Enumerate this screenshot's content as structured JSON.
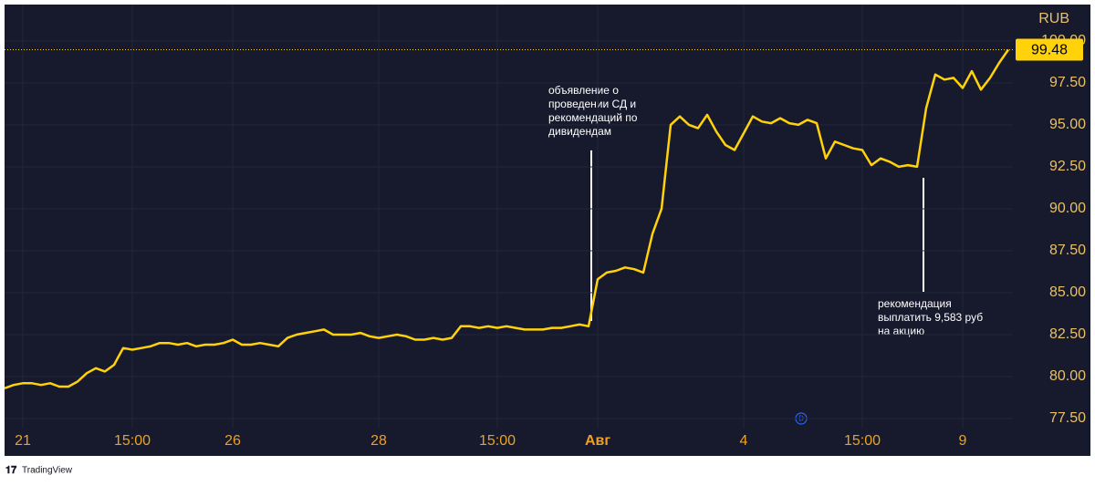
{
  "chart_data": {
    "type": "line",
    "currency": "RUB",
    "color": "#ffd20a",
    "grid": true,
    "categories": [
      null,
      null,
      "21",
      null,
      null,
      null,
      null,
      null,
      null,
      null,
      null,
      null,
      null,
      null,
      "15:00",
      null,
      null,
      null,
      null,
      null,
      null,
      null,
      null,
      null,
      null,
      "26",
      null,
      null,
      null,
      null,
      null,
      null,
      null,
      null,
      null,
      null,
      null,
      null,
      null,
      null,
      null,
      "28",
      null,
      null,
      null,
      null,
      null,
      null,
      null,
      null,
      null,
      null,
      null,
      null,
      "15:00",
      null,
      null,
      null,
      null,
      null,
      null,
      null,
      null,
      null,
      null,
      "Авг",
      null,
      null,
      null,
      null,
      null,
      null,
      null,
      null,
      null,
      null,
      null,
      null,
      null,
      null,
      null,
      "4",
      null,
      null,
      null,
      null,
      null,
      null,
      null,
      null,
      null,
      null,
      null,
      null,
      "15:00",
      null,
      null,
      null,
      null,
      null,
      null,
      null,
      null,
      null,
      null,
      "9",
      null,
      null,
      null,
      null,
      null
    ],
    "values": [
      79.3,
      79.5,
      79.6,
      79.6,
      79.5,
      79.6,
      79.4,
      79.4,
      79.7,
      80.2,
      80.5,
      80.3,
      80.7,
      81.7,
      81.6,
      81.7,
      81.8,
      82.0,
      82.0,
      81.9,
      82.0,
      81.8,
      81.9,
      81.9,
      82.0,
      82.2,
      81.9,
      81.9,
      82.0,
      81.9,
      81.8,
      82.3,
      82.5,
      82.6,
      82.7,
      82.8,
      82.5,
      82.5,
      82.5,
      82.6,
      82.4,
      82.3,
      82.4,
      82.5,
      82.4,
      82.2,
      82.2,
      82.3,
      82.2,
      82.3,
      83.0,
      83.0,
      82.9,
      83.0,
      82.9,
      83.0,
      82.9,
      82.8,
      82.8,
      82.8,
      82.9,
      82.9,
      83.0,
      83.1,
      83.0,
      85.8,
      86.2,
      86.3,
      86.5,
      86.4,
      86.2,
      88.5,
      90.0,
      95.0,
      95.5,
      95.0,
      94.8,
      95.6,
      94.6,
      93.8,
      93.5,
      94.5,
      95.5,
      95.2,
      95.1,
      95.4,
      95.1,
      95.0,
      95.3,
      95.1,
      93.0,
      94.0,
      93.8,
      93.6,
      93.5,
      92.6,
      93.0,
      92.8,
      92.5,
      92.6,
      92.5,
      96.0,
      98.0,
      97.7,
      97.8,
      97.2,
      98.2,
      97.1,
      97.8,
      98.7,
      99.48
    ],
    "ylim": [
      76.9,
      102.17
    ],
    "yticks": [
      {
        "value": 77.5,
        "label": "77.50"
      },
      {
        "value": 80,
        "label": "80.00"
      },
      {
        "value": 82.5,
        "label": "82.50"
      },
      {
        "value": 85,
        "label": "85.00"
      },
      {
        "value": 87.5,
        "label": "87.50"
      },
      {
        "value": 90,
        "label": "90.00"
      },
      {
        "value": 92.5,
        "label": "92.50"
      },
      {
        "value": 95,
        "label": "95.00"
      },
      {
        "value": 97.5,
        "label": "97.50"
      },
      {
        "value": 100,
        "label": "100.00"
      }
    ],
    "annotations": [
      {
        "text": [
          "объявление о",
          "проведении СД и",
          "рекомендаций по",
          "дивидендам"
        ]
      },
      {
        "text": [
          "рекомендация",
          "выплатить 9,583 руб",
          "на акцию"
        ]
      }
    ],
    "marker": "D",
    "brand": "TradingView"
  }
}
